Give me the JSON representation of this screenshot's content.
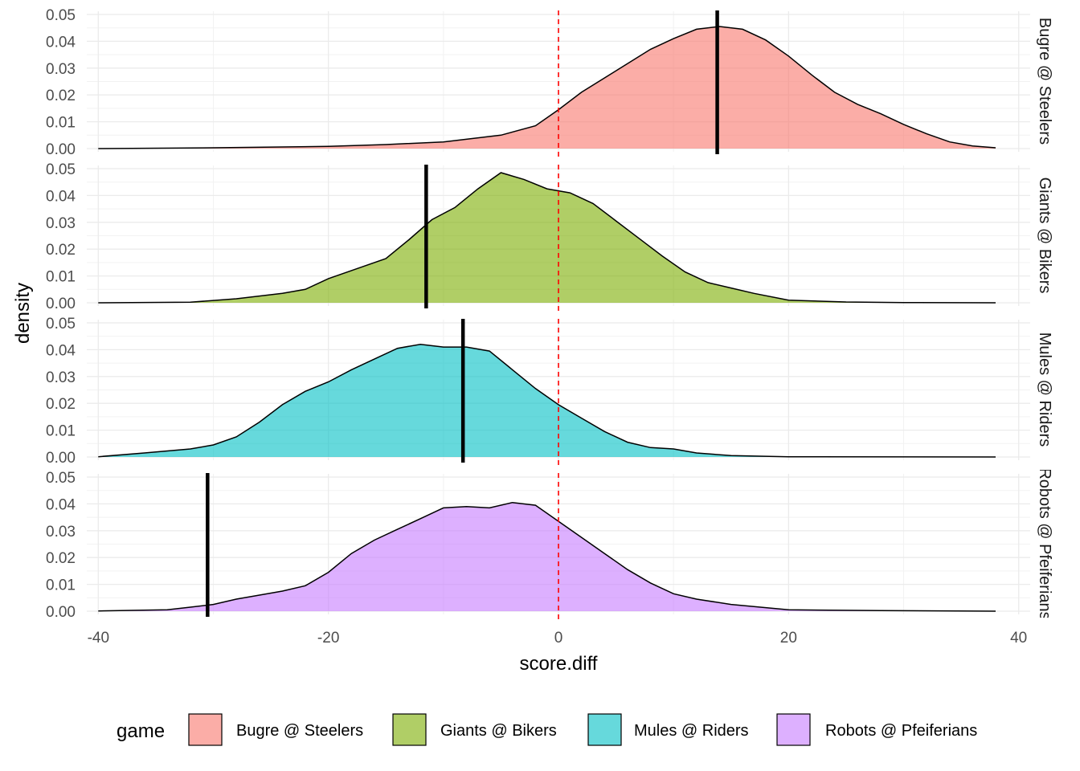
{
  "chart_data": {
    "type": "area",
    "xlabel": "score.diff",
    "ylabel": "density",
    "xlim": [
      -41,
      41
    ],
    "ylim": [
      0,
      0.05
    ],
    "x_ticks": [
      -40,
      -20,
      0,
      20,
      40
    ],
    "y_ticks": [
      0.0,
      0.01,
      0.02,
      0.03,
      0.04,
      0.05
    ],
    "y_tick_labels": [
      "0.00",
      "0.01",
      "0.02",
      "0.03",
      "0.04",
      "0.05"
    ],
    "grid": true,
    "reference_line": {
      "x": 0,
      "color": "#ff0000",
      "style": "dashed"
    },
    "legend": {
      "title": "game",
      "placement": "bottom"
    },
    "series": [
      {
        "name": "Bugre @ Steelers",
        "color": "#F8766D",
        "marker_x": 13.8,
        "points": [
          [
            -40,
            0
          ],
          [
            -30,
            0.0003
          ],
          [
            -20,
            0.0008
          ],
          [
            -15,
            0.0015
          ],
          [
            -10,
            0.0025
          ],
          [
            -5,
            0.005
          ],
          [
            -2,
            0.0085
          ],
          [
            0,
            0.0145
          ],
          [
            2,
            0.021
          ],
          [
            5,
            0.029
          ],
          [
            8,
            0.037
          ],
          [
            10,
            0.041
          ],
          [
            12,
            0.0445
          ],
          [
            14,
            0.0455
          ],
          [
            16,
            0.0445
          ],
          [
            18,
            0.0405
          ],
          [
            20,
            0.0345
          ],
          [
            22,
            0.0275
          ],
          [
            24,
            0.021
          ],
          [
            26,
            0.0165
          ],
          [
            28,
            0.013
          ],
          [
            30,
            0.009
          ],
          [
            32,
            0.0055
          ],
          [
            34,
            0.0025
          ],
          [
            36,
            0.001
          ],
          [
            38,
            0.0003
          ]
        ]
      },
      {
        "name": "Giants @ Bikers",
        "color": "#7CAE00",
        "marker_x": -11.5,
        "points": [
          [
            -40,
            0
          ],
          [
            -32,
            0.0002
          ],
          [
            -28,
            0.0015
          ],
          [
            -24,
            0.0035
          ],
          [
            -22,
            0.005
          ],
          [
            -20,
            0.009
          ],
          [
            -17,
            0.0135
          ],
          [
            -15,
            0.0165
          ],
          [
            -13,
            0.0235
          ],
          [
            -11,
            0.031
          ],
          [
            -9,
            0.0355
          ],
          [
            -7,
            0.0425
          ],
          [
            -5,
            0.0485
          ],
          [
            -3,
            0.046
          ],
          [
            -1,
            0.0425
          ],
          [
            1,
            0.041
          ],
          [
            3,
            0.037
          ],
          [
            5,
            0.0305
          ],
          [
            7,
            0.024
          ],
          [
            9,
            0.0175
          ],
          [
            11,
            0.0115
          ],
          [
            13,
            0.0075
          ],
          [
            15,
            0.0055
          ],
          [
            17,
            0.0035
          ],
          [
            20,
            0.001
          ],
          [
            25,
            0.0003
          ],
          [
            30,
            0.0001
          ],
          [
            38,
            0
          ]
        ]
      },
      {
        "name": "Mules @ Riders",
        "color": "#00BFC4",
        "marker_x": -8.3,
        "points": [
          [
            -40,
            0.0001
          ],
          [
            -36,
            0.0015
          ],
          [
            -32,
            0.003
          ],
          [
            -30,
            0.0045
          ],
          [
            -28,
            0.0075
          ],
          [
            -26,
            0.013
          ],
          [
            -24,
            0.0195
          ],
          [
            -22,
            0.0245
          ],
          [
            -20,
            0.028
          ],
          [
            -18,
            0.0325
          ],
          [
            -16,
            0.0365
          ],
          [
            -14,
            0.0405
          ],
          [
            -12,
            0.042
          ],
          [
            -10,
            0.041
          ],
          [
            -8,
            0.041
          ],
          [
            -6,
            0.0395
          ],
          [
            -4,
            0.0325
          ],
          [
            -2,
            0.0255
          ],
          [
            0,
            0.0195
          ],
          [
            2,
            0.0145
          ],
          [
            4,
            0.0095
          ],
          [
            6,
            0.0055
          ],
          [
            8,
            0.0035
          ],
          [
            10,
            0.003
          ],
          [
            12,
            0.0015
          ],
          [
            15,
            0.0005
          ],
          [
            20,
            0.0001
          ],
          [
            38,
            0
          ]
        ]
      },
      {
        "name": "Robots @ Pfeiferians",
        "color": "#C77CFF",
        "marker_x": -30.5,
        "points": [
          [
            -40,
            0.0001
          ],
          [
            -34,
            0.0005
          ],
          [
            -32,
            0.0015
          ],
          [
            -30,
            0.0025
          ],
          [
            -28,
            0.0045
          ],
          [
            -26,
            0.006
          ],
          [
            -24,
            0.0075
          ],
          [
            -22,
            0.0095
          ],
          [
            -20,
            0.0145
          ],
          [
            -18,
            0.0215
          ],
          [
            -16,
            0.0265
          ],
          [
            -14,
            0.0305
          ],
          [
            -12,
            0.0345
          ],
          [
            -10,
            0.0385
          ],
          [
            -8,
            0.039
          ],
          [
            -6,
            0.0385
          ],
          [
            -4,
            0.0405
          ],
          [
            -2,
            0.0395
          ],
          [
            0,
            0.0335
          ],
          [
            2,
            0.0275
          ],
          [
            4,
            0.0215
          ],
          [
            6,
            0.0155
          ],
          [
            8,
            0.0105
          ],
          [
            10,
            0.0065
          ],
          [
            12,
            0.0045
          ],
          [
            15,
            0.0025
          ],
          [
            20,
            0.0005
          ],
          [
            28,
            0.0002
          ],
          [
            38,
            0
          ]
        ]
      }
    ]
  }
}
